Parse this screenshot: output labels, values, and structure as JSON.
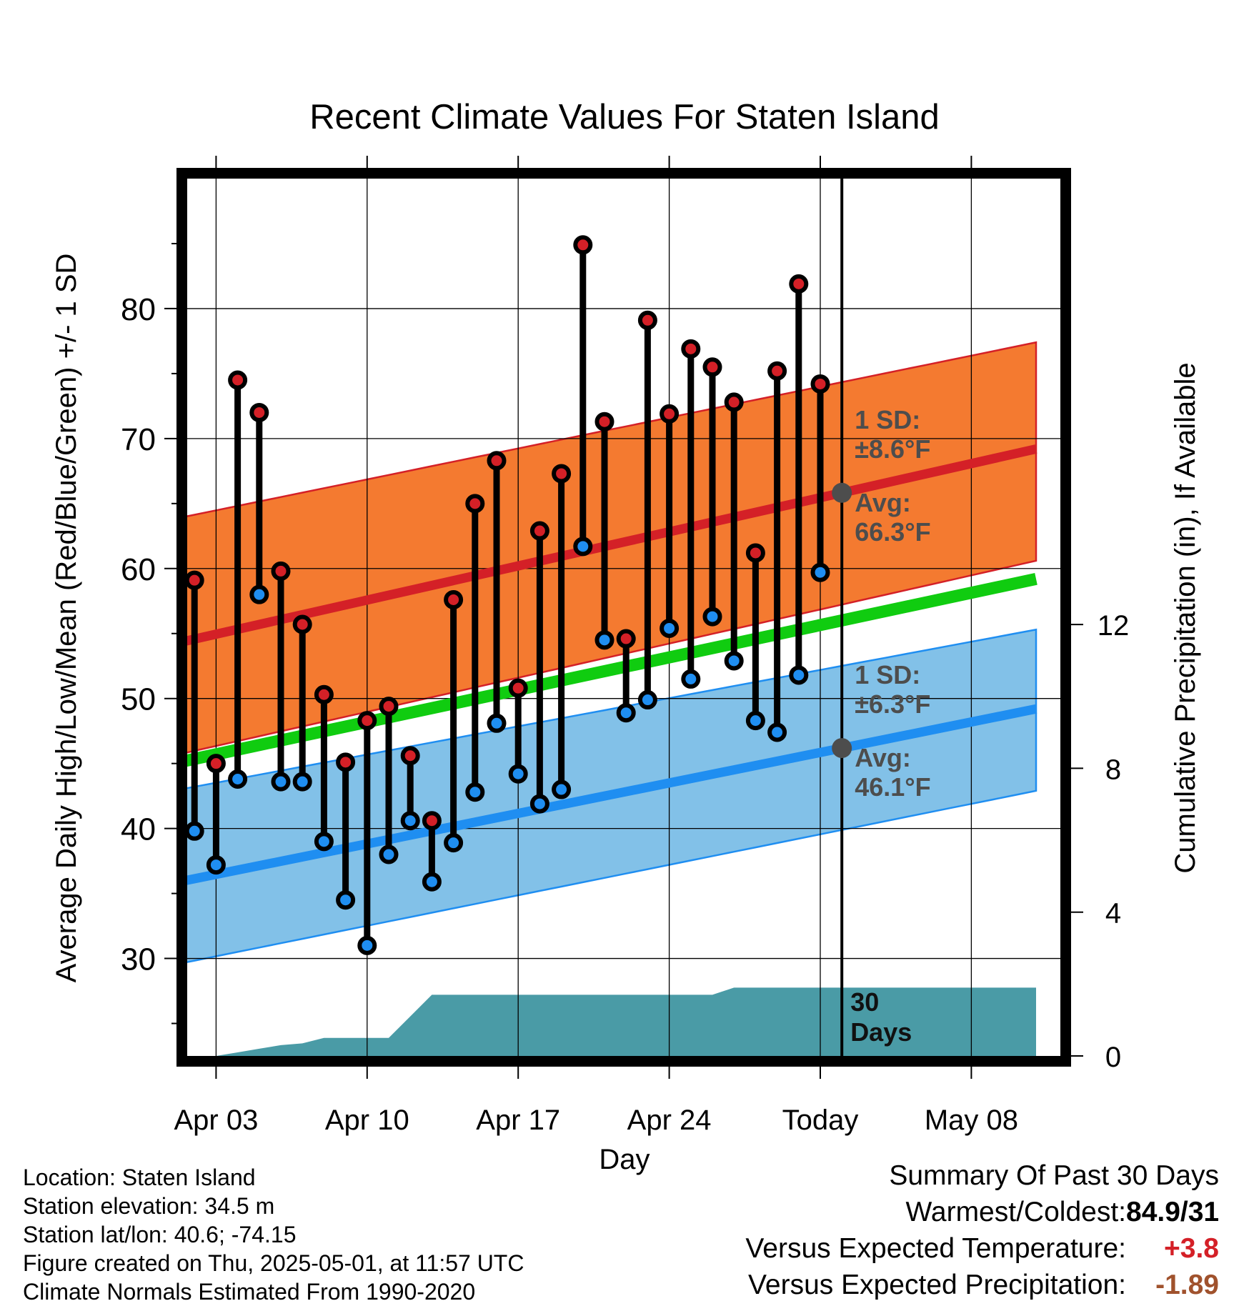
{
  "chart_data": {
    "type": "scatter",
    "title": "Recent Climate Values For Staten Island",
    "xlabel": "Day",
    "ylabel": "Average Daily High/Low/Mean (Red/Blue/Green) +/- 1 SD",
    "y2label": "Cumulative Precipitation (in), If Available",
    "xticks": [
      "Apr 03",
      "Apr 10",
      "Apr 17",
      "Apr 24",
      "Today",
      "May 08"
    ],
    "ylim": [
      22.5,
      90
    ],
    "yticks": [
      30,
      40,
      50,
      60,
      70,
      80
    ],
    "y2lim": [
      0,
      24.4
    ],
    "y2ticks": [
      0,
      4,
      8,
      12
    ],
    "highs": [
      59.1,
      45.0,
      74.5,
      72.0,
      59.8,
      55.7,
      50.3,
      45.1,
      48.3,
      49.4,
      45.6,
      40.6,
      57.6,
      65.0,
      68.3,
      50.8,
      62.9,
      67.3,
      84.9,
      71.3,
      54.6,
      79.1,
      71.9,
      76.9,
      75.5,
      72.8,
      61.2,
      75.2,
      81.9,
      74.2
    ],
    "lows": [
      39.8,
      37.2,
      43.8,
      58.0,
      43.6,
      43.6,
      39.0,
      34.5,
      31.0,
      38.0,
      40.6,
      35.9,
      38.9,
      42.8,
      48.1,
      44.2,
      41.9,
      43.0,
      61.7,
      54.5,
      48.9,
      49.9,
      55.4,
      51.5,
      56.3,
      52.9,
      48.3,
      47.4,
      51.8,
      59.7
    ],
    "normal_high_avg": [
      54.2,
      69.2
    ],
    "normal_high_sd_band": [
      [
        45.6,
        63.8
      ],
      [
        60.6,
        77.4
      ]
    ],
    "normal_low_avg": [
      35.8,
      49.2
    ],
    "normal_low_sd_band": [
      [
        29.5,
        42.9
      ],
      [
        42.9,
        55.3
      ]
    ],
    "normal_mean": [
      45.0,
      59.2
    ],
    "precip_cumulative": [
      0,
      0,
      0,
      0.1,
      0.2,
      0.3,
      0.35,
      0.5,
      0.5,
      0.5,
      0.5,
      1.1,
      1.7,
      1.7,
      1.7,
      1.7,
      1.7,
      1.7,
      1.7,
      1.7,
      1.7,
      1.7,
      1.7,
      1.7,
      1.7,
      1.7,
      1.9,
      1.9,
      1.9,
      1.9,
      1.9,
      1.9
    ],
    "today_high_sd_label": "1 SD:",
    "today_high_sd_value": "±8.6°F",
    "today_high_avg_label": "Avg:",
    "today_high_avg_value": "66.3°F",
    "today_low_sd_label": "1 SD:",
    "today_low_sd_value": "±6.3°F",
    "today_low_avg_label": "Avg:",
    "today_low_avg_value": "46.1°F",
    "window_label_1": "30",
    "window_label_2": "Days",
    "grid": true,
    "colors": {
      "high_band": "#f47a30",
      "high_line": "#d42027",
      "low_band": "#82c1e8",
      "low_line": "#1f8ef1",
      "mean_line": "#10cc10",
      "precip": "#4a9ba6",
      "high_dot": "#d42027",
      "low_dot": "#1f8ef1"
    }
  },
  "footer": {
    "location": "Location: Staten Island",
    "elevation": "Station elevation: 34.5 m",
    "latlon": "Station lat/lon: 40.6; -74.15",
    "created": "Figure created on Thu, 2025-05-01, at 11:57 UTC",
    "normals": "Climate Normals Estimated From 1990-2020"
  },
  "summary": {
    "heading": "Summary Of Past 30 Days",
    "warm_label": "Warmest/Coldest:",
    "warm_value": "84.9/31",
    "temp_label": "Versus Expected Temperature:",
    "temp_value": "+3.8",
    "temp_color": "#d42027",
    "precip_label": "Versus Expected Precipitation:",
    "precip_value": "-1.89",
    "precip_color": "#a0522d"
  }
}
